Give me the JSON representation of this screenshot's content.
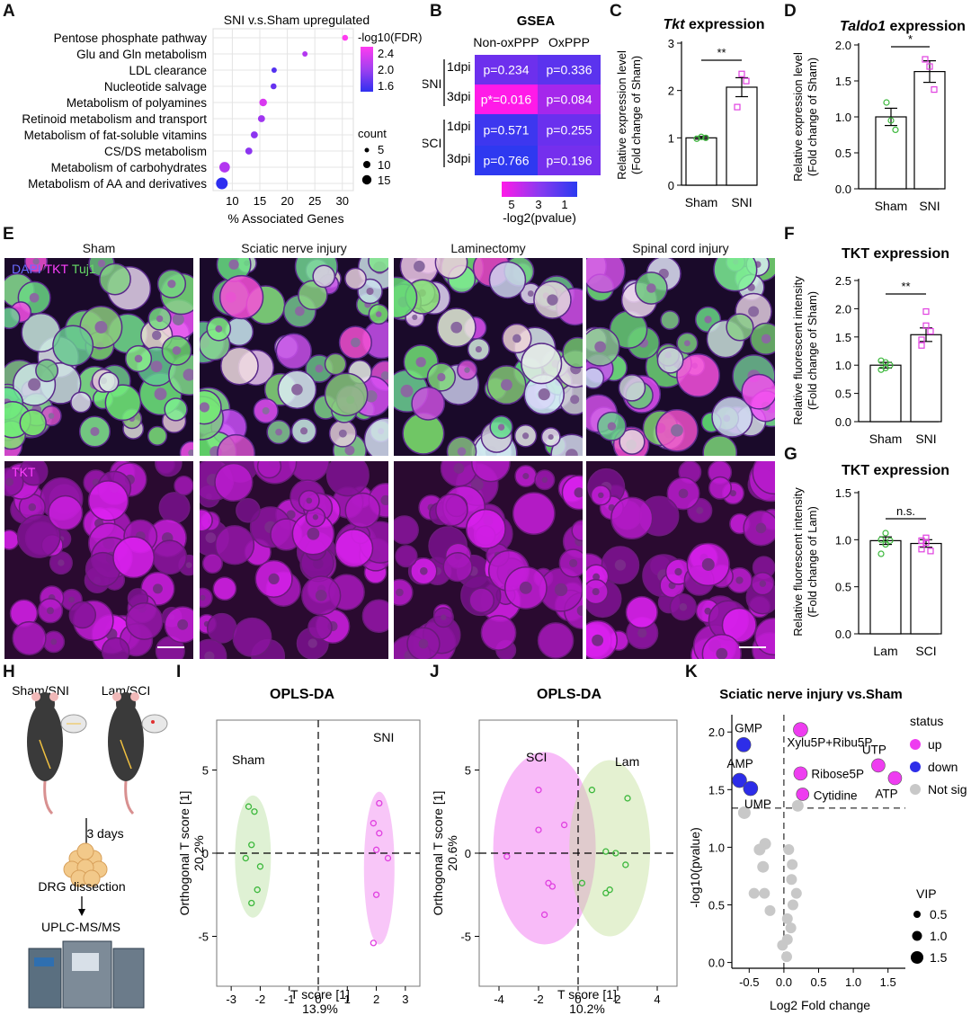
{
  "panel_letters": [
    "A",
    "B",
    "C",
    "D",
    "E",
    "F",
    "G",
    "H",
    "I",
    "J",
    "K"
  ],
  "panelA": {
    "title": "SNI v.s.Sham upregulated",
    "pathways": [
      "Pentose phosphate pathway",
      "Glu and Gln metabolism",
      "LDL clearance",
      "Nucleotide salvage",
      "Metabolism of polyamines",
      "Retinoid metabolism and transport",
      "Metabolism of fat-soluble vitamins",
      "CS/DS metabolism",
      "Metabolism of carbohydrates",
      "Metabolism of AA and derivatives"
    ],
    "xlabel": "% Associated Genes",
    "xticks": [
      "10",
      "15",
      "20",
      "25",
      "30"
    ],
    "legend_color_title": "-log10(FDR)",
    "legend_color_ticks": [
      "2.4",
      "2.0",
      "1.6"
    ],
    "legend_size_title": "count",
    "legend_size_ticks": [
      "5",
      "10",
      "15"
    ]
  },
  "panelB": {
    "title": "GSEA",
    "cols": [
      "Non-oxPPP",
      "OxPPP"
    ],
    "group1": "SNI",
    "group2": "SCI",
    "rows": [
      "1dpi",
      "3dpi",
      "1dpi",
      "3dpi"
    ],
    "cells": [
      [
        "p=0.234",
        "p=0.336"
      ],
      [
        "p*=0.016",
        "p=0.084"
      ],
      [
        "p=0.571",
        "p=0.255"
      ],
      [
        "p=0.766",
        "p=0.196"
      ]
    ],
    "colorbar_ticks": [
      "5",
      "3",
      "1"
    ],
    "colorbar_label": "-log2(pvalue)"
  },
  "panelC": {
    "title_gene": "Tkt",
    "title_rest": " expression",
    "ylabel1": "Relative expression level",
    "ylabel2": "(Fold change of Sham)",
    "yticks": [
      "0",
      "1",
      "2",
      "3"
    ],
    "groups": [
      "Sham",
      "SNI"
    ],
    "sig": "**"
  },
  "panelD": {
    "title_gene": "Taldo1",
    "title_rest": " expression",
    "ylabel1": "Relative expression level",
    "ylabel2": "(Fold change of Sham)",
    "yticks": [
      "0.0",
      "0.5",
      "1.0",
      "1.5",
      "2.0"
    ],
    "groups": [
      "Sham",
      "SNI"
    ],
    "sig": "*"
  },
  "panelE": {
    "columns": [
      "Sham",
      "Sciatic nerve injury",
      "Laminectomy",
      "Spinal cord injury"
    ],
    "merge_label_dapi": "DAPI",
    "merge_label_tkt": "TKT",
    "merge_label_tuj": "Tuj1",
    "tkt_label": "TKT"
  },
  "panelF": {
    "title": "TKT expression",
    "ylabel1": "Relative fluorescent intensity",
    "ylabel2": "(Fold change of Sham)",
    "yticks": [
      "0.0",
      "0.5",
      "1.0",
      "1.5",
      "2.0",
      "2.5"
    ],
    "groups": [
      "Sham",
      "SNI"
    ],
    "sig": "**"
  },
  "panelG": {
    "title": "TKT expression",
    "ylabel1": "Relative fluorescent intensity",
    "ylabel2": "(Fold change of Lam)",
    "yticks": [
      "0.0",
      "0.5",
      "1.0",
      "1.5"
    ],
    "groups": [
      "Lam",
      "SCI"
    ],
    "sig": "n.s."
  },
  "panelH": {
    "left": "Sham/SNI",
    "right": "Lam/SCI",
    "days": "3 days",
    "step1": "DRG dissection",
    "step2": "UPLC-MS/MS"
  },
  "panelI": {
    "title": "OPLS-DA",
    "group_a": "Sham",
    "group_b": "SNI",
    "xlabel": "T score [1]",
    "xpct": "13.9%",
    "ylabel": "Orthogonal T score [1]",
    "ypct": "20.2%",
    "xticks": [
      "-3",
      "-2",
      "-1",
      "0",
      "1",
      "2",
      "3"
    ],
    "yticks": [
      "5",
      "0",
      "-5"
    ]
  },
  "panelJ": {
    "title": "OPLS-DA",
    "group_a": "SCI",
    "group_b": "Lam",
    "xlabel": "T score [1]",
    "xpct": "10.2%",
    "ylabel": "Orthogonal T score [1]",
    "ypct": "20.6%",
    "xticks": [
      "-4",
      "-2",
      "0",
      "2",
      "4"
    ],
    "yticks": [
      "5",
      "0",
      "-5"
    ]
  },
  "panelK": {
    "title": "Sciatic nerve injury vs.Sham",
    "xlabel": "Log2 Fold change",
    "ylabel": "-log10(pvalue)",
    "xticks": [
      "-0.5",
      "0.0",
      "0.5",
      "1.0",
      "1.5"
    ],
    "yticks": [
      "0.0",
      "0.5",
      "1.0",
      "1.5",
      "2.0"
    ],
    "labels": [
      "GMP",
      "AMP",
      "UMP",
      "Xylu5P+Ribu5P",
      "UTP",
      "Ribose5P",
      "ATP",
      "Cytidine"
    ],
    "legend_status_title": "status",
    "legend_status": [
      "up",
      "down",
      "Not sig"
    ],
    "legend_vip_title": "VIP",
    "legend_vip": [
      "0.5",
      "1.0",
      "1.5"
    ]
  },
  "colors": {
    "magenta": "#ee3df0",
    "blue": "#2d2de8",
    "green": "#7ed07e",
    "grey": "#c8c8c8"
  },
  "chart_data": [
    {
      "panel": "A",
      "type": "scatter",
      "title": "SNI v.s.Sham upregulated",
      "xlabel": "% Associated Genes",
      "xlim": [
        6.5,
        32
      ],
      "points": [
        {
          "y": "Pentose phosphate pathway",
          "x": 30.5,
          "fdr": 2.5,
          "count": 4
        },
        {
          "y": "Glu and Gln metabolism",
          "x": 23.2,
          "fdr": 2.1,
          "count": 3
        },
        {
          "y": "LDL clearance",
          "x": 17.6,
          "fdr": 1.6,
          "count": 3
        },
        {
          "y": "Nucleotide salvage",
          "x": 17.5,
          "fdr": 1.7,
          "count": 4
        },
        {
          "y": "Metabolism of polyamines",
          "x": 15.6,
          "fdr": 2.3,
          "count": 7
        },
        {
          "y": "Retinoid metabolism and transport",
          "x": 15.3,
          "fdr": 2.0,
          "count": 6
        },
        {
          "y": "Metabolism of fat-soluble vitamins",
          "x": 14.0,
          "fdr": 1.9,
          "count": 6
        },
        {
          "y": "CS/DS metabolism",
          "x": 13.0,
          "fdr": 1.9,
          "count": 6
        },
        {
          "y": "Metabolism of carbohydrates",
          "x": 8.6,
          "fdr": 2.1,
          "count": 12
        },
        {
          "y": "Metabolism of AA and derivatives",
          "x": 8.1,
          "fdr": 1.4,
          "count": 14
        }
      ]
    },
    {
      "panel": "B",
      "type": "heatmap",
      "title": "GSEA",
      "values_neglog2p": [
        [
          2.1,
          1.6
        ],
        [
          6.0,
          3.6
        ],
        [
          0.8,
          2.0
        ],
        [
          0.4,
          2.3
        ]
      ]
    },
    {
      "panel": "C",
      "type": "bar",
      "categories": [
        "Sham",
        "SNI"
      ],
      "values": [
        1.0,
        2.07
      ],
      "sem": [
        0.03,
        0.2
      ],
      "points": [
        [
          0.98,
          1.02,
          1.0
        ],
        [
          1.65,
          2.35,
          2.2
        ]
      ],
      "ylim": [
        0,
        3
      ]
    },
    {
      "panel": "D",
      "type": "bar",
      "categories": [
        "Sham",
        "SNI"
      ],
      "values": [
        1.0,
        1.63
      ],
      "sem": [
        0.12,
        0.15
      ],
      "points": [
        [
          1.2,
          0.95,
          0.82
        ],
        [
          1.8,
          1.7,
          1.38
        ]
      ],
      "ylim": [
        0,
        2
      ]
    },
    {
      "panel": "F",
      "type": "bar",
      "categories": [
        "Sham",
        "SNI"
      ],
      "values": [
        1.0,
        1.54
      ],
      "sem": [
        0.05,
        0.12
      ],
      "points": [
        [
          0.92,
          1.05,
          1.0,
          1.08,
          0.95
        ],
        [
          1.35,
          1.95,
          1.6,
          1.45,
          1.7
        ]
      ],
      "ylim": [
        0,
        2.5
      ]
    },
    {
      "panel": "G",
      "type": "bar",
      "categories": [
        "Lam",
        "SCI"
      ],
      "values": [
        0.99,
        0.96
      ],
      "sem": [
        0.04,
        0.04
      ],
      "points": [
        [
          0.85,
          1.07,
          0.99,
          1.0,
          0.95
        ],
        [
          0.9,
          1.02,
          0.88,
          0.99,
          0.97
        ]
      ],
      "ylim": [
        0,
        1.5
      ]
    },
    {
      "panel": "I",
      "type": "scatter",
      "xlim": [
        -3.5,
        3.5
      ],
      "ylim": [
        -8,
        8
      ],
      "series": [
        {
          "name": "Sham",
          "points": [
            [
              -2.4,
              2.8
            ],
            [
              -2.2,
              2.5
            ],
            [
              -2.3,
              0.5
            ],
            [
              -2.5,
              -0.3
            ],
            [
              -2.0,
              -0.8
            ],
            [
              -2.1,
              -2.2
            ],
            [
              -2.3,
              -3.0
            ]
          ]
        },
        {
          "name": "SNI",
          "points": [
            [
              2.1,
              3.0
            ],
            [
              1.9,
              1.8
            ],
            [
              2.1,
              1.2
            ],
            [
              2.0,
              0.2
            ],
            [
              2.4,
              -0.3
            ],
            [
              2.0,
              -2.5
            ],
            [
              1.9,
              -5.4
            ]
          ]
        }
      ]
    },
    {
      "panel": "J",
      "type": "scatter",
      "xlim": [
        -5,
        5
      ],
      "ylim": [
        -8,
        8
      ],
      "series": [
        {
          "name": "SCI",
          "points": [
            [
              -3.6,
              -0.2
            ],
            [
              -2.0,
              3.8
            ],
            [
              -2.0,
              1.4
            ],
            [
              -0.7,
              1.7
            ],
            [
              -1.5,
              -1.8
            ],
            [
              -1.3,
              -2.0
            ],
            [
              -1.7,
              -3.7
            ]
          ]
        },
        {
          "name": "Lam",
          "points": [
            [
              0.7,
              3.8
            ],
            [
              2.5,
              3.3
            ],
            [
              1.4,
              0.1
            ],
            [
              1.9,
              0.0
            ],
            [
              2.4,
              -0.7
            ],
            [
              0.2,
              -1.8
            ],
            [
              1.6,
              -2.2
            ],
            [
              1.4,
              -2.4
            ]
          ]
        }
      ]
    },
    {
      "panel": "K",
      "type": "scatter",
      "xlim": [
        -0.75,
        1.75
      ],
      "ylim": [
        -0.05,
        2.15
      ],
      "points": [
        {
          "label": "GMP",
          "x": -0.58,
          "y": 1.89,
          "status": "down",
          "vip": 1.2
        },
        {
          "label": "AMP",
          "x": -0.64,
          "y": 1.58,
          "status": "down",
          "vip": 1.2
        },
        {
          "label": "UMP",
          "x": -0.48,
          "y": 1.51,
          "status": "down",
          "vip": 1.2
        },
        {
          "label": "Xylu5P+Ribu5P",
          "x": 0.24,
          "y": 2.02,
          "status": "up",
          "vip": 1.2
        },
        {
          "label": "UTP",
          "x": 1.36,
          "y": 1.71,
          "status": "up",
          "vip": 1.1
        },
        {
          "label": "Ribose5P",
          "x": 0.24,
          "y": 1.64,
          "status": "up",
          "vip": 1.1
        },
        {
          "label": "ATP",
          "x": 1.6,
          "y": 1.6,
          "status": "up",
          "vip": 1.1
        },
        {
          "label": "Cytidine",
          "x": 0.27,
          "y": 1.46,
          "status": "up",
          "vip": 1.0
        },
        {
          "x": -0.57,
          "y": 1.3,
          "status": "Not sig",
          "vip": 1.0
        },
        {
          "x": 0.2,
          "y": 1.36,
          "status": "Not sig",
          "vip": 0.9
        },
        {
          "x": -0.35,
          "y": 0.98,
          "status": "Not sig",
          "vip": 0.9
        },
        {
          "x": -0.27,
          "y": 1.03,
          "status": "Not sig",
          "vip": 0.9
        },
        {
          "x": -0.3,
          "y": 0.83,
          "status": "Not sig",
          "vip": 0.9
        },
        {
          "x": 0.07,
          "y": 0.98,
          "status": "Not sig",
          "vip": 0.8
        },
        {
          "x": 0.12,
          "y": 0.85,
          "status": "Not sig",
          "vip": 0.8
        },
        {
          "x": 0.11,
          "y": 0.72,
          "status": "Not sig",
          "vip": 0.8
        },
        {
          "x": -0.43,
          "y": 0.6,
          "status": "Not sig",
          "vip": 0.8
        },
        {
          "x": -0.28,
          "y": 0.6,
          "status": "Not sig",
          "vip": 0.8
        },
        {
          "x": 0.18,
          "y": 0.6,
          "status": "Not sig",
          "vip": 0.8
        },
        {
          "x": 0.13,
          "y": 0.5,
          "status": "Not sig",
          "vip": 0.8
        },
        {
          "x": -0.2,
          "y": 0.45,
          "status": "Not sig",
          "vip": 0.8
        },
        {
          "x": 0.05,
          "y": 0.38,
          "status": "Not sig",
          "vip": 0.8
        },
        {
          "x": 0.1,
          "y": 0.3,
          "status": "Not sig",
          "vip": 0.8
        },
        {
          "x": 0.05,
          "y": 0.2,
          "status": "Not sig",
          "vip": 0.8
        },
        {
          "x": -0.02,
          "y": 0.15,
          "status": "Not sig",
          "vip": 0.8
        },
        {
          "x": 0.04,
          "y": 0.05,
          "status": "Not sig",
          "vip": 0.8
        }
      ]
    }
  ]
}
